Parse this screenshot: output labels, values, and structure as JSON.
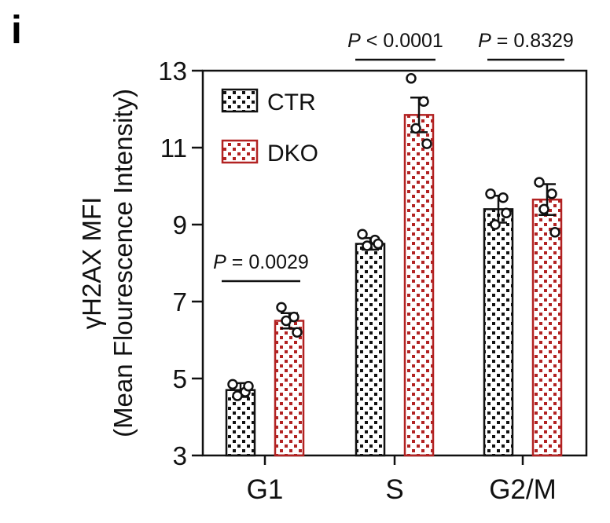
{
  "panel_letter": "i",
  "chart_data": {
    "type": "bar",
    "categories": [
      "G1",
      "S",
      "G2/M"
    ],
    "ylabel_line1": "γH2AX MFI",
    "ylabel_line2": "(Mean Flourescence Intensity)",
    "ylim": [
      3,
      13
    ],
    "yticks": [
      3,
      5,
      7,
      9,
      11,
      13
    ],
    "series": [
      {
        "name": "CTR",
        "color": "#111111",
        "values": [
          4.7,
          8.5,
          9.4
        ],
        "errors": [
          0.18,
          0.15,
          0.35
        ],
        "points": [
          [
            4.85,
            4.65,
            4.55,
            4.8
          ],
          [
            8.75,
            8.6,
            8.45,
            8.5
          ],
          [
            9.8,
            9.7,
            9.0,
            9.3
          ]
        ]
      },
      {
        "name": "DKO",
        "color": "#b22222",
        "values": [
          6.5,
          11.85,
          9.65
        ],
        "errors": [
          0.2,
          0.45,
          0.4
        ],
        "points": [
          [
            6.85,
            6.6,
            6.5,
            6.2
          ],
          [
            12.8,
            12.2,
            11.5,
            11.1
          ],
          [
            10.1,
            9.8,
            9.4,
            8.8
          ]
        ]
      }
    ],
    "significance": [
      {
        "prefix": "P",
        "text": " = 0.0029"
      },
      {
        "prefix": "P",
        "text": " < 0.0001"
      },
      {
        "prefix": "P",
        "text": " = 0.8329"
      }
    ],
    "legend_position": "top-left"
  }
}
